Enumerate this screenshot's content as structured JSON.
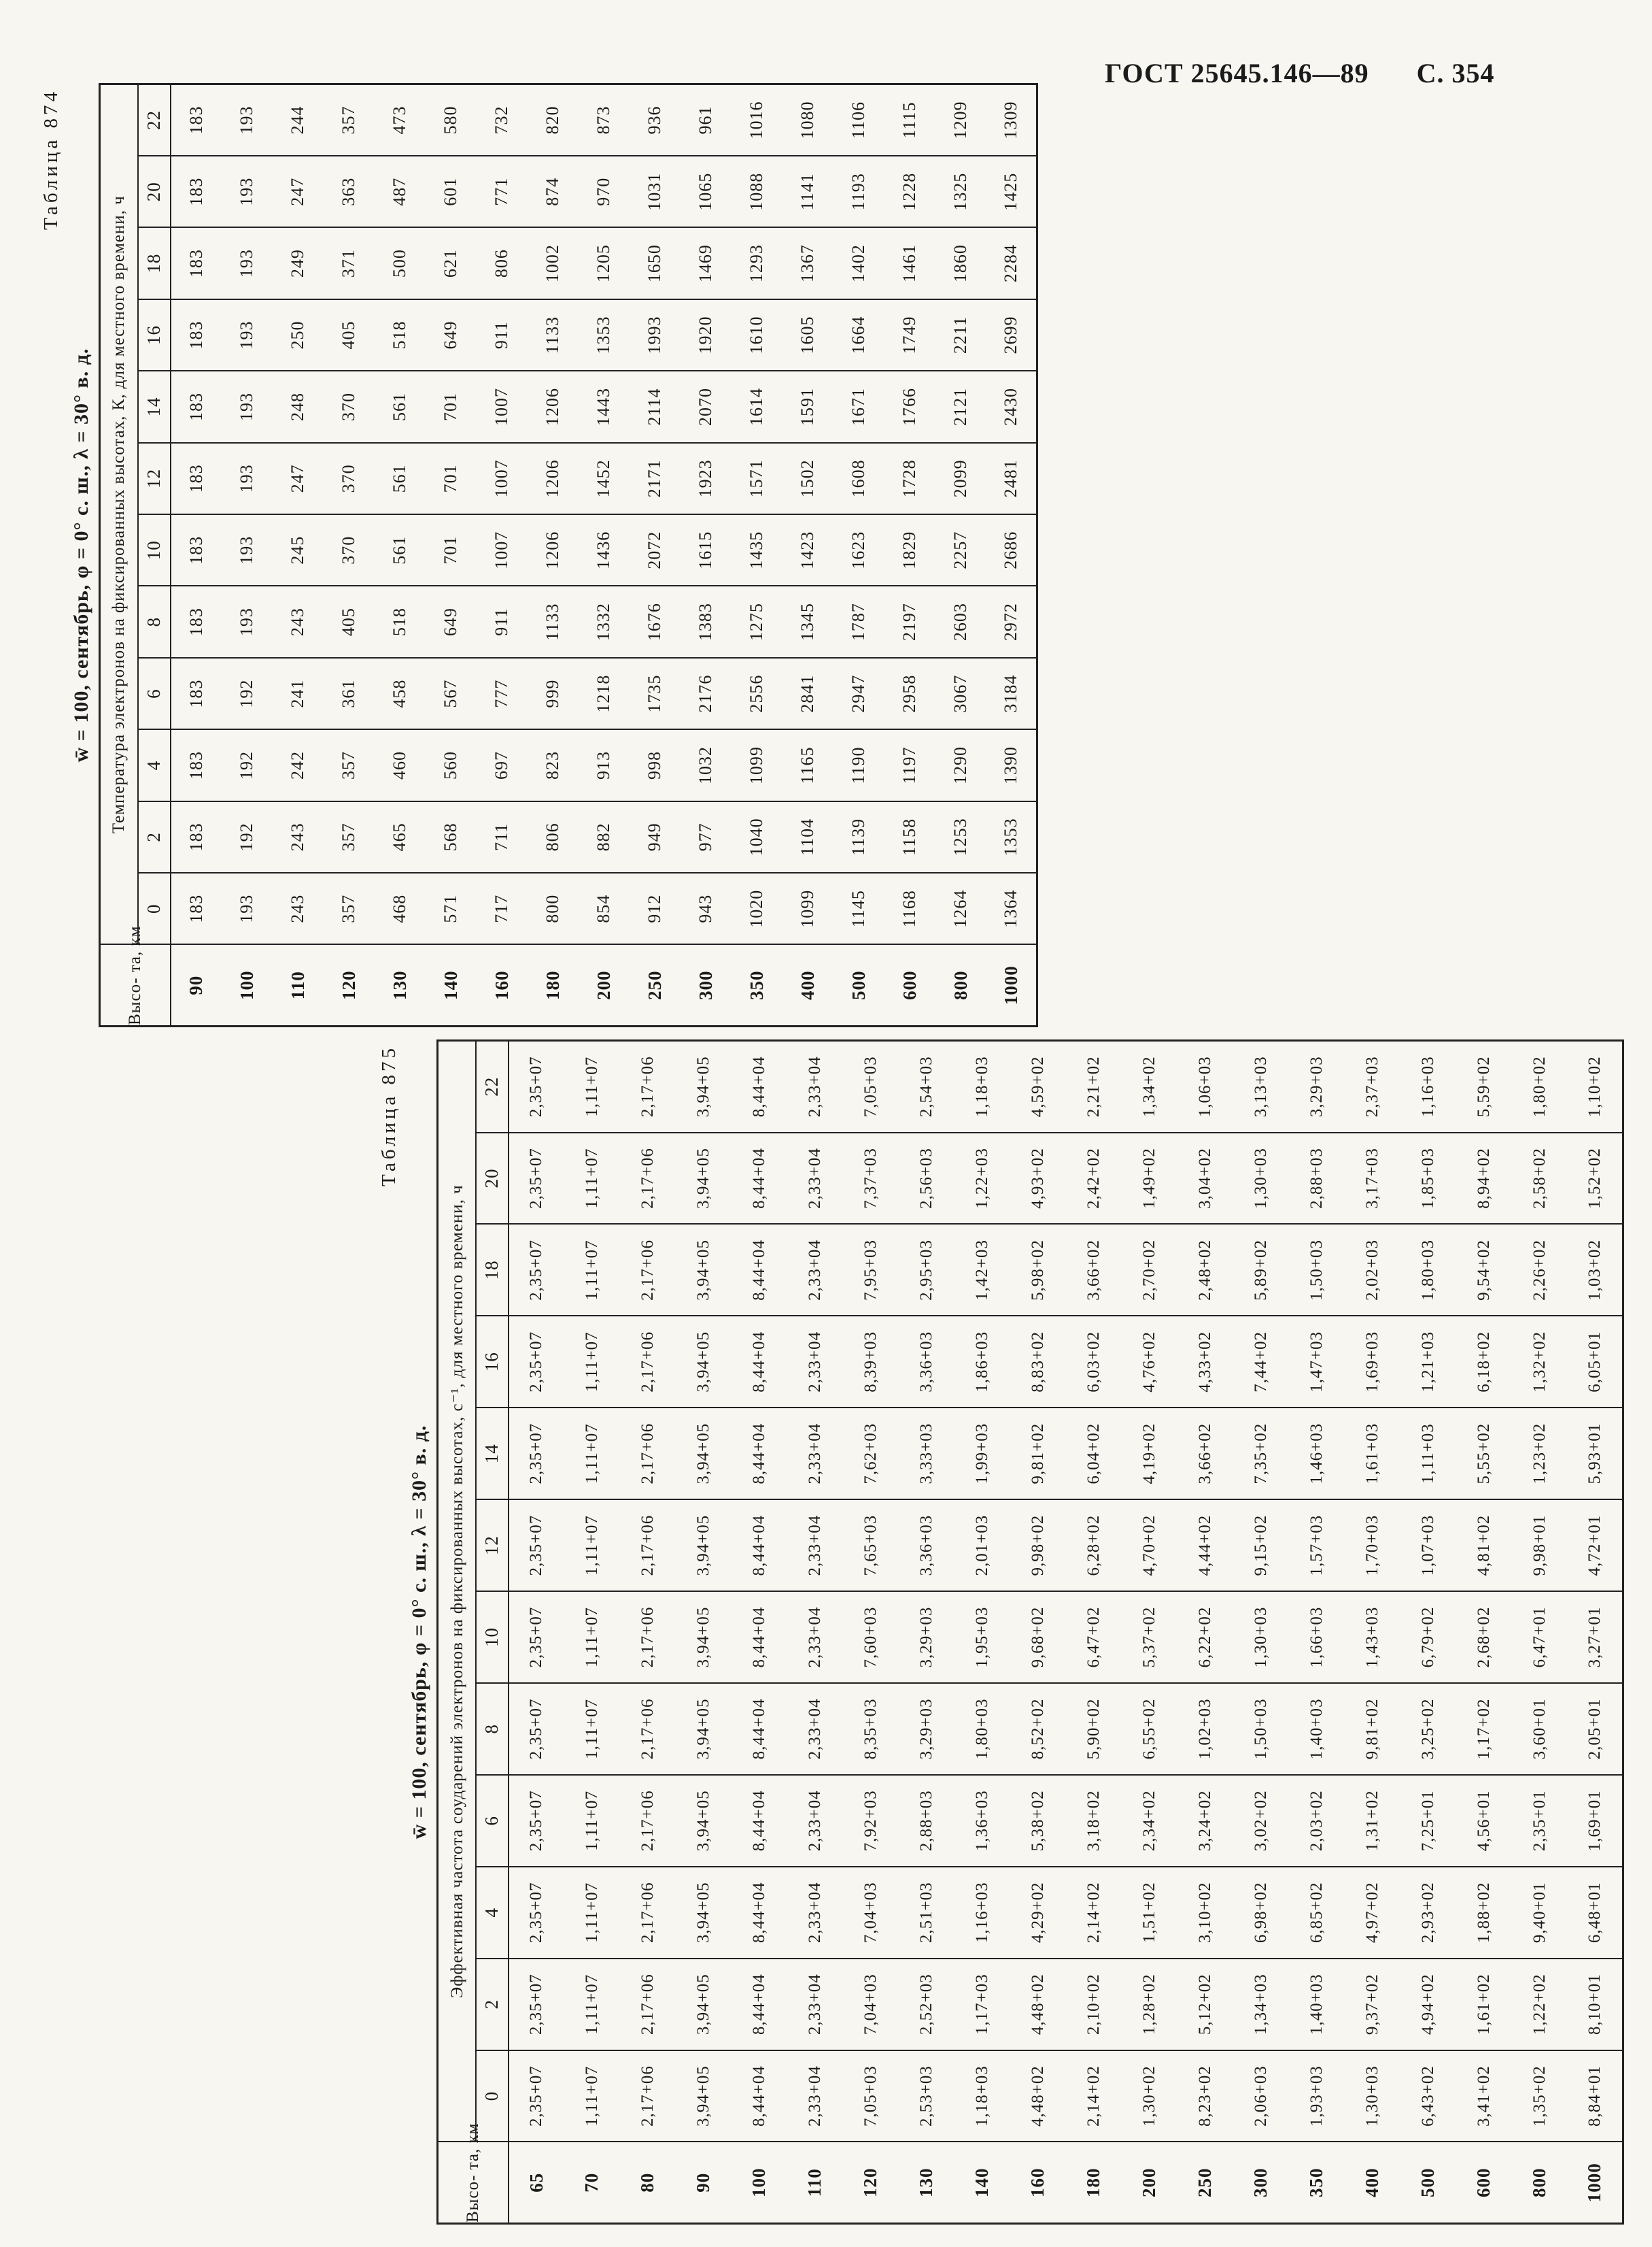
{
  "colors": {
    "paper": "#f7f6f1",
    "ink": "#1b1b1b"
  },
  "page": {
    "header_gost": "ГОСТ 25645.146—89",
    "header_page": "С. 354"
  },
  "table874": {
    "label": "Таблица 874",
    "title": "w̄ = 100, сентябрь, φ = 0° с. ш., λ = 30° в. д.",
    "span_header": "Температура электронов на фиксированных высотах, К, для местного времени, ч",
    "height_col_label": "Высо-\nта, км",
    "hours": [
      "0",
      "2",
      "4",
      "6",
      "8",
      "10",
      "12",
      "14",
      "16",
      "18",
      "20",
      "22"
    ],
    "rows": [
      {
        "h": "90",
        "v": [
          "183",
          "183",
          "183",
          "183",
          "183",
          "183",
          "183",
          "183",
          "183",
          "183",
          "183",
          "183"
        ]
      },
      {
        "h": "100",
        "v": [
          "193",
          "192",
          "192",
          "192",
          "193",
          "193",
          "193",
          "193",
          "193",
          "193",
          "193",
          "193"
        ]
      },
      {
        "h": "110",
        "v": [
          "243",
          "243",
          "242",
          "241",
          "243",
          "245",
          "247",
          "248",
          "250",
          "249",
          "247",
          "244"
        ]
      },
      {
        "h": "120",
        "v": [
          "357",
          "357",
          "357",
          "361",
          "405",
          "370",
          "370",
          "370",
          "405",
          "371",
          "363",
          "357"
        ]
      },
      {
        "h": "130",
        "v": [
          "468",
          "465",
          "460",
          "458",
          "518",
          "561",
          "561",
          "561",
          "518",
          "500",
          "487",
          "473"
        ]
      },
      {
        "h": "140",
        "v": [
          "571",
          "568",
          "560",
          "567",
          "649",
          "701",
          "701",
          "701",
          "649",
          "621",
          "601",
          "580"
        ]
      },
      {
        "h": "160",
        "v": [
          "717",
          "711",
          "697",
          "777",
          "911",
          "1007",
          "1007",
          "1007",
          "911",
          "806",
          "771",
          "732"
        ]
      },
      {
        "h": "180",
        "v": [
          "800",
          "806",
          "823",
          "999",
          "1133",
          "1206",
          "1206",
          "1206",
          "1133",
          "1002",
          "874",
          "820"
        ]
      },
      {
        "h": "200",
        "v": [
          "854",
          "882",
          "913",
          "1218",
          "1332",
          "1436",
          "1452",
          "1443",
          "1353",
          "1205",
          "970",
          "873"
        ]
      },
      {
        "h": "250",
        "v": [
          "912",
          "949",
          "998",
          "1735",
          "1676",
          "2072",
          "2171",
          "2114",
          "1993",
          "1650",
          "1031",
          "936"
        ]
      },
      {
        "h": "300",
        "v": [
          "943",
          "977",
          "1032",
          "2176",
          "1383",
          "1615",
          "1923",
          "2070",
          "1920",
          "1469",
          "1065",
          "961"
        ]
      },
      {
        "h": "350",
        "v": [
          "1020",
          "1040",
          "1099",
          "2556",
          "1275",
          "1435",
          "1571",
          "1614",
          "1610",
          "1293",
          "1088",
          "1016"
        ]
      },
      {
        "h": "400",
        "v": [
          "1099",
          "1104",
          "1165",
          "2841",
          "1345",
          "1423",
          "1502",
          "1591",
          "1605",
          "1367",
          "1141",
          "1080"
        ]
      },
      {
        "h": "500",
        "v": [
          "1145",
          "1139",
          "1190",
          "2947",
          "1787",
          "1623",
          "1608",
          "1671",
          "1664",
          "1402",
          "1193",
          "1106"
        ]
      },
      {
        "h": "600",
        "v": [
          "1168",
          "1158",
          "1197",
          "2958",
          "2197",
          "1829",
          "1728",
          "1766",
          "1749",
          "1461",
          "1228",
          "1115"
        ]
      },
      {
        "h": "800",
        "v": [
          "1264",
          "1253",
          "1290",
          "3067",
          "2603",
          "2257",
          "2099",
          "2121",
          "2211",
          "1860",
          "1325",
          "1209"
        ]
      },
      {
        "h": "1000",
        "v": [
          "1364",
          "1353",
          "1390",
          "3184",
          "2972",
          "2686",
          "2481",
          "2430",
          "2699",
          "2284",
          "1425",
          "1309"
        ]
      }
    ]
  },
  "table875": {
    "label": "Таблица 875",
    "title": "w̄ = 100, сентябрь, φ = 0° с. ш., λ = 30° в. д.",
    "span_header": "Эффективная частота соударений электронов на фиксированных высотах, с⁻¹, для местного  времени, ч",
    "height_col_label": "Высо-\nта, км",
    "hours": [
      "0",
      "2",
      "4",
      "6",
      "8",
      "10",
      "12",
      "14",
      "16",
      "18",
      "20",
      "22"
    ],
    "rows": [
      {
        "h": "65",
        "v": [
          "2,35+07",
          "2,35+07",
          "2,35+07",
          "2,35+07",
          "2,35+07",
          "2,35+07",
          "2,35+07",
          "2,35+07",
          "2,35+07",
          "2,35+07",
          "2,35+07",
          "2,35+07"
        ]
      },
      {
        "h": "70",
        "v": [
          "1,11+07",
          "1,11+07",
          "1,11+07",
          "1,11+07",
          "1,11+07",
          "1,11+07",
          "1,11+07",
          "1,11+07",
          "1,11+07",
          "1,11+07",
          "1,11+07",
          "1,11+07"
        ]
      },
      {
        "h": "80",
        "v": [
          "2,17+06",
          "2,17+06",
          "2,17+06",
          "2,17+06",
          "2,17+06",
          "2,17+06",
          "2,17+06",
          "2,17+06",
          "2,17+06",
          "2,17+06",
          "2,17+06",
          "2,17+06"
        ]
      },
      {
        "h": "90",
        "v": [
          "3,94+05",
          "3,94+05",
          "3,94+05",
          "3,94+05",
          "3,94+05",
          "3,94+05",
          "3,94+05",
          "3,94+05",
          "3,94+05",
          "3,94+05",
          "3,94+05",
          "3,94+05"
        ]
      },
      {
        "h": "100",
        "v": [
          "8,44+04",
          "8,44+04",
          "8,44+04",
          "8,44+04",
          "8,44+04",
          "8,44+04",
          "8,44+04",
          "8,44+04",
          "8,44+04",
          "8,44+04",
          "8,44+04",
          "8,44+04"
        ]
      },
      {
        "h": "110",
        "v": [
          "2,33+04",
          "2,33+04",
          "2,33+04",
          "2,33+04",
          "2,33+04",
          "2,33+04",
          "2,33+04",
          "2,33+04",
          "2,33+04",
          "2,33+04",
          "2,33+04",
          "2,33+04"
        ]
      },
      {
        "h": "120",
        "v": [
          "7,05+03",
          "7,04+03",
          "7,04+03",
          "7,92+03",
          "8,35+03",
          "7,60+03",
          "7,65+03",
          "7,62+03",
          "8,39+03",
          "7,95+03",
          "7,37+03",
          "7,05+03"
        ]
      },
      {
        "h": "130",
        "v": [
          "2,53+03",
          "2,52+03",
          "2,51+03",
          "2,88+03",
          "3,29+03",
          "3,29+03",
          "3,36+03",
          "3,33+03",
          "3,36+03",
          "2,95+03",
          "2,56+03",
          "2,54+03"
        ]
      },
      {
        "h": "140",
        "v": [
          "1,18+03",
          "1,17+03",
          "1,16+03",
          "1,36+03",
          "1,80+03",
          "1,95+03",
          "2,01+03",
          "1,99+03",
          "1,86+03",
          "1,42+03",
          "1,22+03",
          "1,18+03"
        ]
      },
      {
        "h": "160",
        "v": [
          "4,48+02",
          "4,48+02",
          "4,29+02",
          "5,38+02",
          "8,52+02",
          "9,68+02",
          "9,98+02",
          "9,81+02",
          "8,83+02",
          "5,98+02",
          "4,93+02",
          "4,59+02"
        ]
      },
      {
        "h": "180",
        "v": [
          "2,14+02",
          "2,10+02",
          "2,14+02",
          "3,18+02",
          "5,90+02",
          "6,47+02",
          "6,28+02",
          "6,04+02",
          "6,03+02",
          "3,66+02",
          "2,42+02",
          "2,21+02"
        ]
      },
      {
        "h": "200",
        "v": [
          "1,30+02",
          "1,28+02",
          "1,51+02",
          "2,34+02",
          "6,55+02",
          "5,37+02",
          "4,70+02",
          "4,19+02",
          "4,76+02",
          "2,70+02",
          "1,49+02",
          "1,34+02"
        ]
      },
      {
        "h": "250",
        "v": [
          "8,23+02",
          "5,12+02",
          "3,10+02",
          "3,24+02",
          "1,02+03",
          "6,22+02",
          "4,44+02",
          "3,66+02",
          "4,33+02",
          "2,48+02",
          "3,04+02",
          "1,06+03"
        ]
      },
      {
        "h": "300",
        "v": [
          "2,06+03",
          "1,34+03",
          "6,98+02",
          "3,02+02",
          "1,50+03",
          "1,30+03",
          "9,15+02",
          "7,35+02",
          "7,44+02",
          "5,89+02",
          "1,30+03",
          "3,13+03"
        ]
      },
      {
        "h": "350",
        "v": [
          "1,93+03",
          "1,40+03",
          "6,85+02",
          "2,03+02",
          "1,40+03",
          "1,66+03",
          "1,57+03",
          "1,46+03",
          "1,47+03",
          "1,50+03",
          "2,88+03",
          "3,29+03"
        ]
      },
      {
        "h": "400",
        "v": [
          "1,30+03",
          "9,37+02",
          "4,97+02",
          "1,31+02",
          "9,81+02",
          "1,43+03",
          "1,70+03",
          "1,61+03",
          "1,69+03",
          "2,02+03",
          "3,17+03",
          "2,37+03"
        ]
      },
      {
        "h": "500",
        "v": [
          "6,43+02",
          "4,94+02",
          "2,93+02",
          "7,25+01",
          "3,25+02",
          "6,79+02",
          "1,07+03",
          "1,11+03",
          "1,21+03",
          "1,80+03",
          "1,85+03",
          "1,16+03"
        ]
      },
      {
        "h": "600",
        "v": [
          "3,41+02",
          "1,61+02",
          "1,88+02",
          "4,56+01",
          "1,17+02",
          "2,68+02",
          "4,81+02",
          "5,55+02",
          "6,18+02",
          "9,54+02",
          "8,94+02",
          "5,59+02"
        ]
      },
      {
        "h": "800",
        "v": [
          "1,35+02",
          "1,22+02",
          "9,40+01",
          "2,35+01",
          "3,60+01",
          "6,47+01",
          "9,98+01",
          "1,23+02",
          "1,32+02",
          "2,26+02",
          "2,58+02",
          "1,80+02"
        ]
      },
      {
        "h": "1000",
        "v": [
          "8,84+01",
          "8,10+01",
          "6,48+01",
          "1,69+01",
          "2,05+01",
          "3,27+01",
          "4,72+01",
          "5,93+01",
          "6,05+01",
          "1,03+02",
          "1,52+02",
          "1,10+02"
        ]
      }
    ]
  }
}
